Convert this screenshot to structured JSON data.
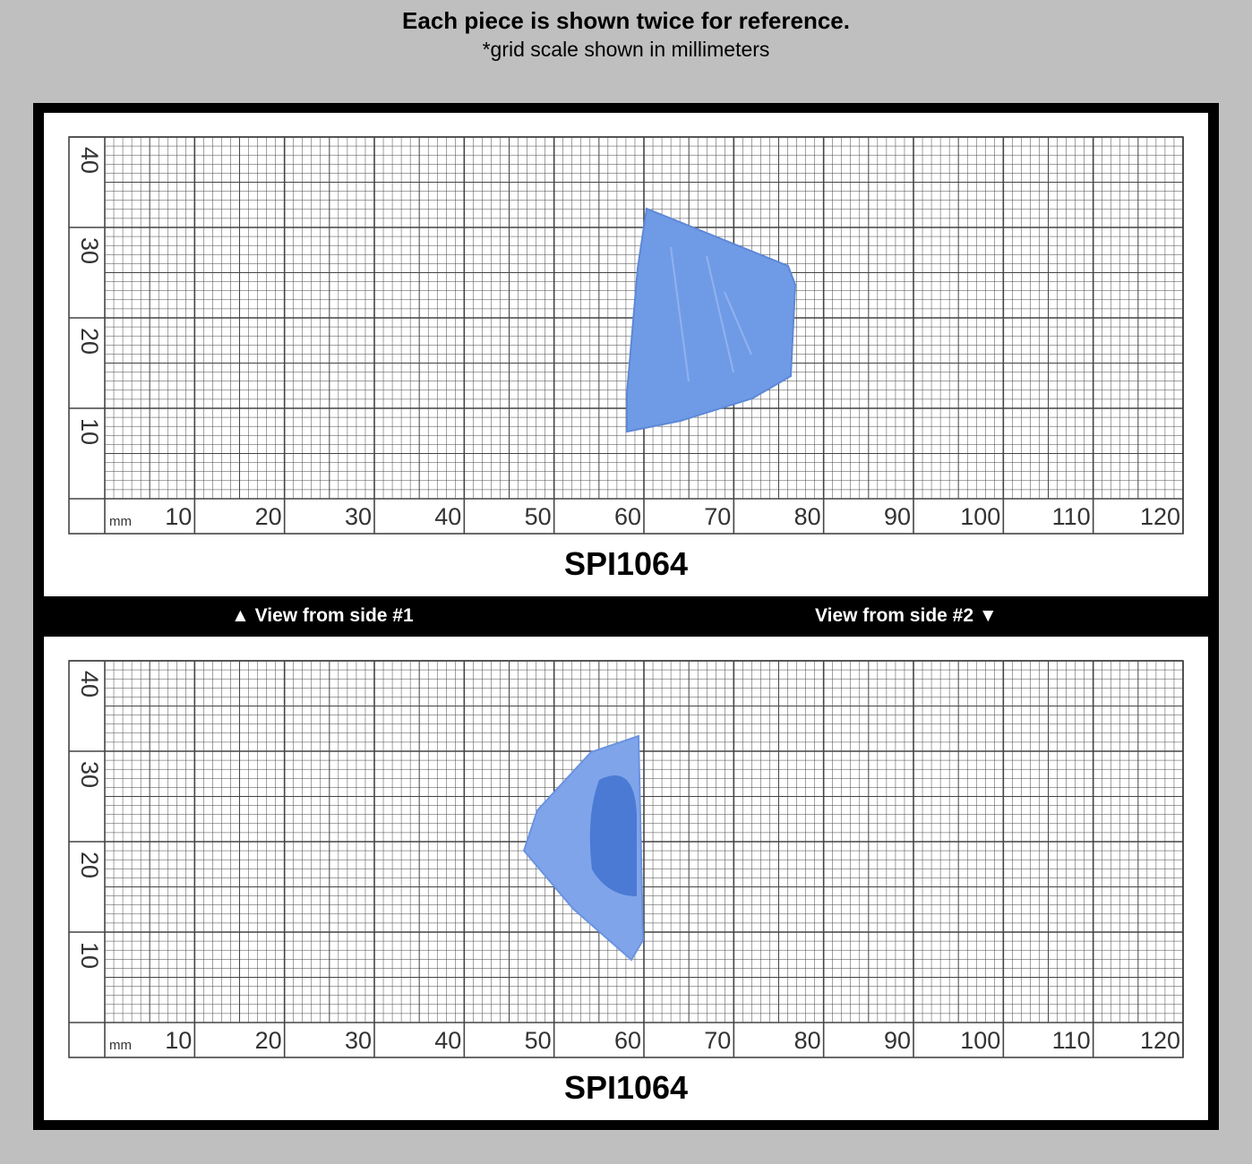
{
  "header": {
    "title": "Each piece is shown twice for reference.",
    "subtitle": "*grid scale shown in millimeters"
  },
  "panels": [
    {
      "unit": "mm",
      "x_labels": [
        10,
        20,
        30,
        40,
        50,
        60,
        70,
        80,
        90,
        100,
        110,
        120
      ],
      "y_labels": [
        10,
        20,
        30,
        40
      ],
      "code": "SPI1064"
    },
    {
      "unit": "mm",
      "x_labels": [
        10,
        20,
        30,
        40,
        50,
        60,
        70,
        80,
        90,
        100,
        110,
        120
      ],
      "y_labels": [
        10,
        20,
        30,
        40
      ],
      "code": "SPI1064"
    }
  ],
  "band": {
    "left": "▲ View from side #1",
    "right": "View from side #2 ▼"
  }
}
